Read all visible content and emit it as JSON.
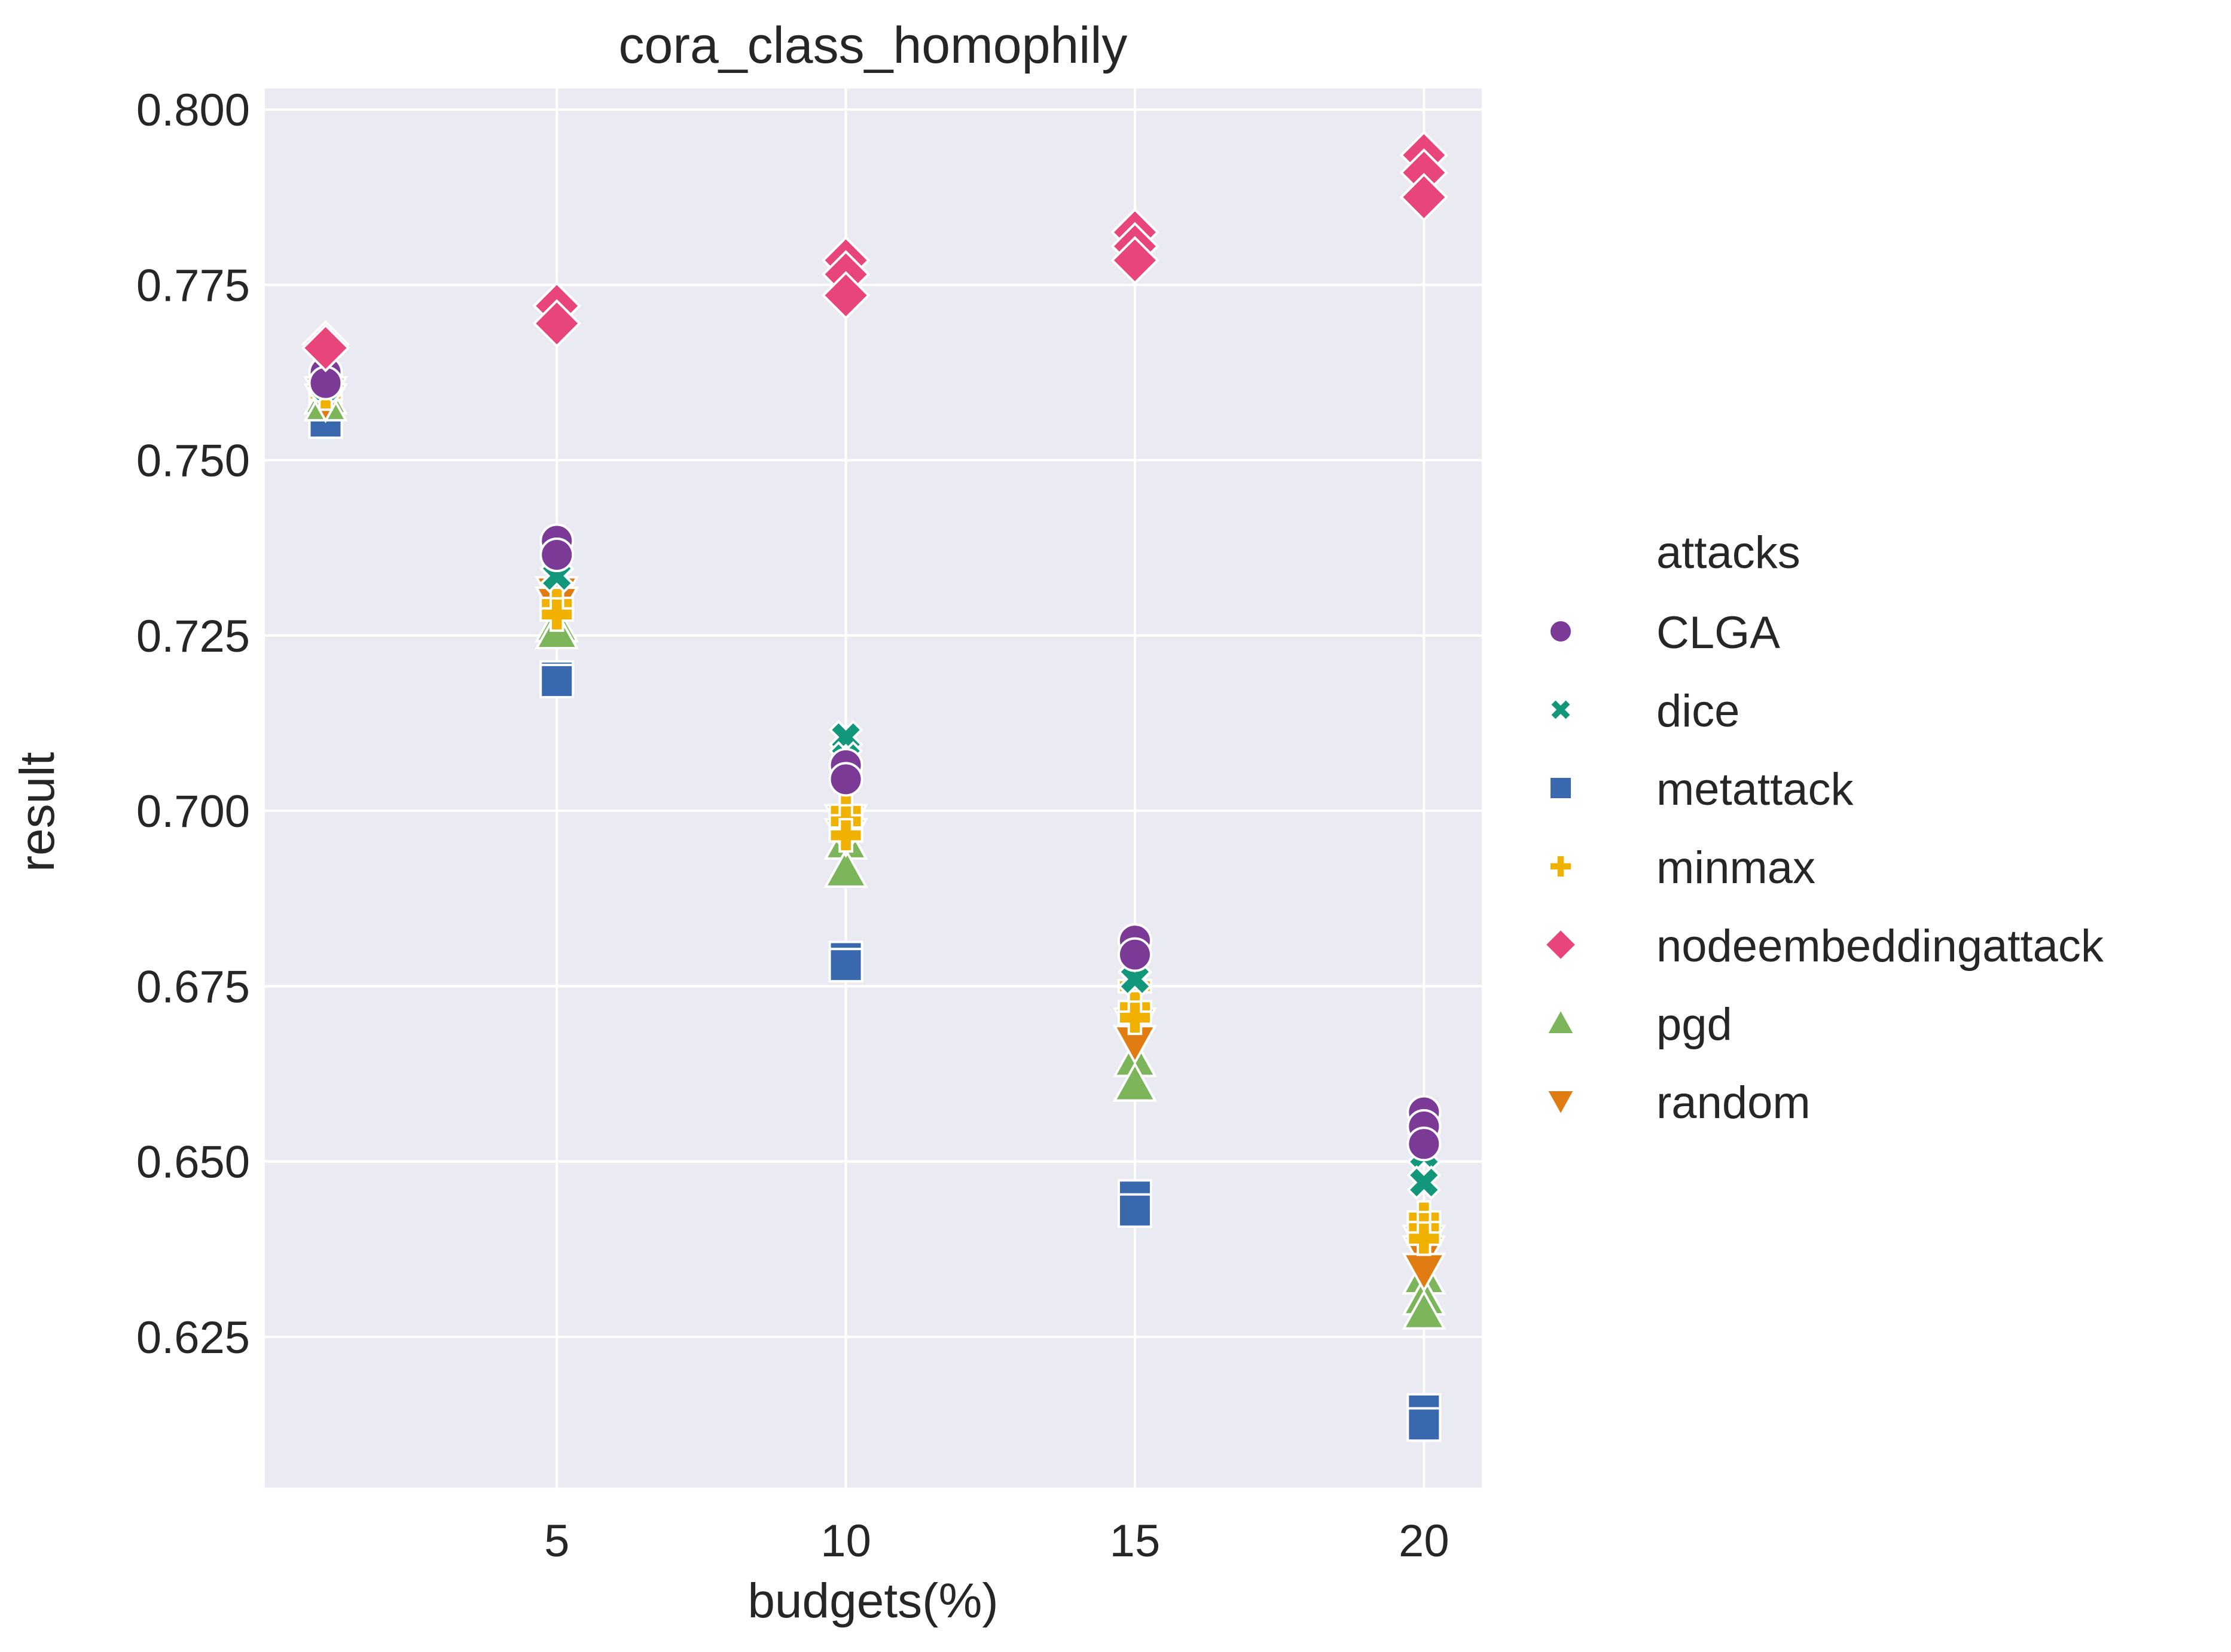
{
  "chart_data": {
    "type": "scatter",
    "title": "cora_class_homophily",
    "xlabel": "budgets(%)",
    "ylabel": "result",
    "xlim": [
      -0.05,
      21.0
    ],
    "ylim": [
      0.6035,
      0.803
    ],
    "xticks": [
      5,
      10,
      15,
      20
    ],
    "xtick_labels": [
      "5",
      "10",
      "15",
      "20"
    ],
    "yticks": [
      0.625,
      0.65,
      0.675,
      0.7,
      0.725,
      0.75,
      0.775,
      0.8
    ],
    "ytick_labels": [
      "0.625",
      "0.650",
      "0.675",
      "0.700",
      "0.725",
      "0.750",
      "0.775",
      "0.800"
    ],
    "grid": true,
    "background": "#eaeaf2",
    "legend": {
      "title": "attacks",
      "position": "right"
    },
    "series": [
      {
        "name": "CLGA",
        "marker": "circle",
        "color": "#7b3a96",
        "points": [
          [
            1,
            0.7625
          ],
          [
            1,
            0.761
          ],
          [
            5,
            0.7385
          ],
          [
            5,
            0.7365
          ],
          [
            10,
            0.7065
          ],
          [
            10,
            0.7045
          ],
          [
            15,
            0.6815
          ],
          [
            15,
            0.6795
          ],
          [
            20,
            0.657
          ],
          [
            20,
            0.655
          ],
          [
            20,
            0.6525
          ]
        ]
      },
      {
        "name": "dice",
        "marker": "x",
        "color": "#12977b",
        "points": [
          [
            1,
            0.762
          ],
          [
            1,
            0.7605
          ],
          [
            5,
            0.7355
          ],
          [
            5,
            0.7335
          ],
          [
            10,
            0.7105
          ],
          [
            10,
            0.7075
          ],
          [
            15,
            0.678
          ],
          [
            15,
            0.676
          ],
          [
            20,
            0.653
          ],
          [
            20,
            0.651
          ],
          [
            20,
            0.647
          ]
        ]
      },
      {
        "name": "metattack",
        "marker": "square",
        "color": "#3a68ae",
        "points": [
          [
            1,
            0.7565
          ],
          [
            1,
            0.7555
          ],
          [
            5,
            0.719
          ],
          [
            5,
            0.7185
          ],
          [
            10,
            0.679
          ],
          [
            10,
            0.678
          ],
          [
            15,
            0.645
          ],
          [
            15,
            0.643
          ],
          [
            20,
            0.6145
          ],
          [
            20,
            0.6125
          ]
        ]
      },
      {
        "name": "minmax",
        "marker": "plus",
        "color": "#f0b100",
        "points": [
          [
            1,
            0.7605
          ],
          [
            1,
            0.7595
          ],
          [
            5,
            0.7295
          ],
          [
            5,
            0.728
          ],
          [
            10,
            0.7
          ],
          [
            10,
            0.6985
          ],
          [
            10,
            0.6965
          ],
          [
            15,
            0.675
          ],
          [
            15,
            0.672
          ],
          [
            15,
            0.6705
          ],
          [
            20,
            0.642
          ],
          [
            20,
            0.6405
          ],
          [
            20,
            0.639
          ]
        ]
      },
      {
        "name": "nodeembeddingattack",
        "marker": "diamond",
        "color": "#e8457a",
        "points": [
          [
            1,
            0.7665
          ],
          [
            1,
            0.766
          ],
          [
            5,
            0.772
          ],
          [
            5,
            0.7695
          ],
          [
            10,
            0.7785
          ],
          [
            10,
            0.7765
          ],
          [
            10,
            0.7735
          ],
          [
            15,
            0.7825
          ],
          [
            15,
            0.7805
          ],
          [
            15,
            0.7785
          ],
          [
            20,
            0.7935
          ],
          [
            20,
            0.791
          ],
          [
            20,
            0.7875
          ]
        ]
      },
      {
        "name": "pgd",
        "marker": "triangle-up",
        "color": "#7cb55a",
        "points": [
          [
            1,
            0.759
          ],
          [
            1,
            0.758
          ],
          [
            5,
            0.7265
          ],
          [
            5,
            0.7255
          ],
          [
            10,
            0.6955
          ],
          [
            10,
            0.6915
          ],
          [
            15,
            0.6645
          ],
          [
            15,
            0.661
          ],
          [
            20,
            0.6335
          ],
          [
            20,
            0.6305
          ],
          [
            20,
            0.6285
          ]
        ]
      },
      {
        "name": "random",
        "marker": "triangle-down",
        "color": "#e07c12",
        "points": [
          [
            1,
            0.7595
          ],
          [
            1,
            0.7585
          ],
          [
            5,
            0.731
          ],
          [
            5,
            0.7295
          ],
          [
            10,
            0.6985
          ],
          [
            10,
            0.6965
          ],
          [
            15,
            0.6695
          ],
          [
            15,
            0.667
          ],
          [
            20,
            0.6385
          ],
          [
            20,
            0.637
          ],
          [
            20,
            0.6345
          ]
        ]
      }
    ]
  }
}
